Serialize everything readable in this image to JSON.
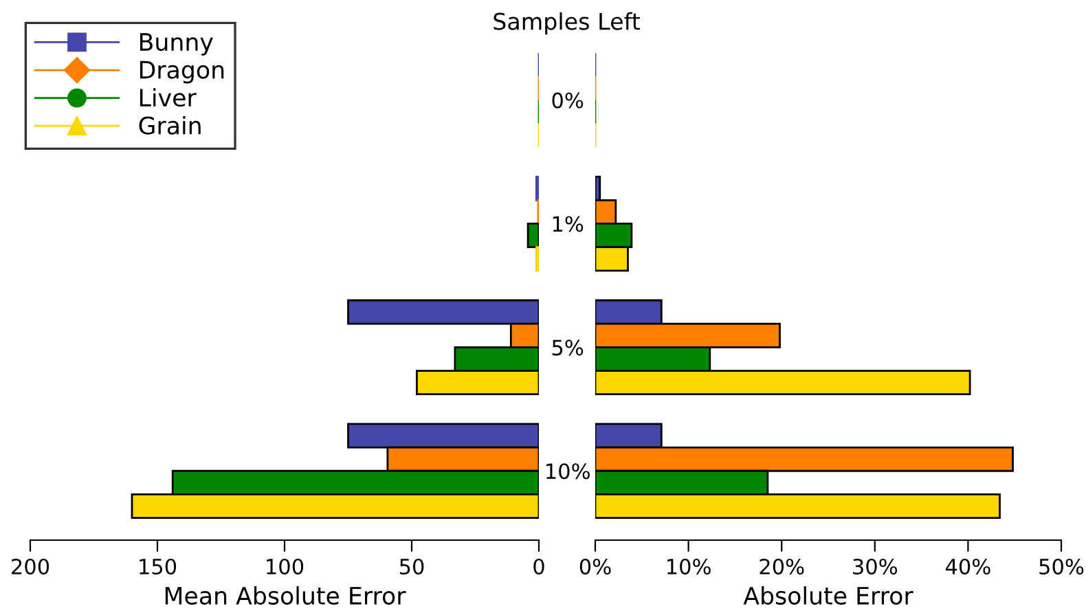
{
  "chart_data": [
    {
      "type": "bar",
      "orientation": "horizontal",
      "title": "Samples Left",
      "xlabel": "Mean Absolute Error",
      "categories": [
        "0%",
        "1%",
        "5%",
        "10%"
      ],
      "series": [
        {
          "name": "Bunny",
          "color": "#4747aa",
          "marker": "square",
          "values": [
            0,
            1,
            75,
            75
          ]
        },
        {
          "name": "Dragon",
          "color": "#ff7f00",
          "marker": "diamond",
          "values": [
            0,
            0.3,
            11,
            59.5
          ]
        },
        {
          "name": "Liver",
          "color": "#008800",
          "marker": "circle",
          "values": [
            0,
            4.3,
            33,
            144
          ]
        },
        {
          "name": "Grain",
          "color": "#ffd700",
          "marker": "triangle",
          "values": [
            0,
            1,
            48,
            160
          ]
        }
      ],
      "xlim": [
        200,
        0
      ],
      "xticks": [
        200,
        150,
        100,
        50,
        0
      ],
      "legend": "top left",
      "grid": false
    },
    {
      "type": "bar",
      "orientation": "horizontal",
      "xlabel": "Absolute Error",
      "tick_labels": "x",
      "series": [
        {
          "color": "#4747aa",
          "values": [
            0,
            0.5,
            7.1,
            7.1
          ]
        },
        {
          "color": "#ff7f00",
          "values": [
            0,
            2.2,
            19.8,
            44.8
          ]
        },
        {
          "color": "#008800",
          "values": [
            0,
            3.9,
            12.3,
            18.5
          ]
        },
        {
          "color": "#ffd700",
          "values": [
            0,
            3.5,
            40.2,
            43.4
          ]
        }
      ],
      "xlim": [
        0,
        50
      ],
      "xticks": [
        {
          "value": 0,
          "label": "0%"
        },
        {
          "value": 10,
          "label": "10%"
        },
        {
          "value": 20,
          "label": "20%"
        },
        {
          "value": 30,
          "label": "30%"
        },
        {
          "value": 40,
          "label": "40%"
        },
        {
          "value": 50,
          "label": "50%"
        }
      ],
      "grid": false
    }
  ]
}
